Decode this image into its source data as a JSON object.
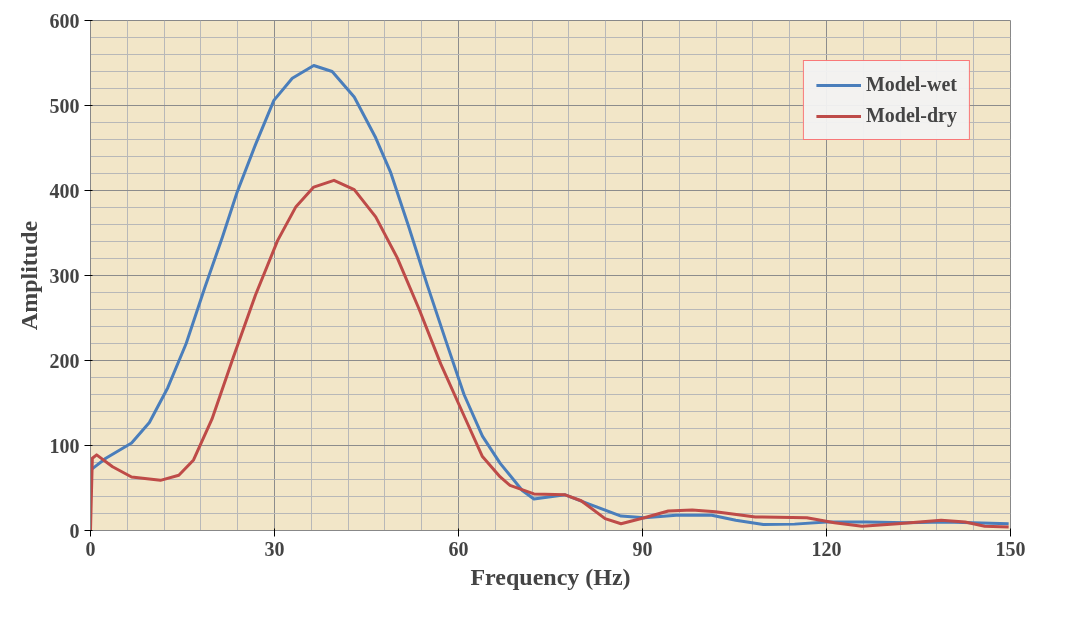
{
  "chart_data": {
    "type": "line",
    "xlabel": "Frequency (Hz)",
    "ylabel": "Amplitude",
    "xlim": [
      0,
      150
    ],
    "ylim": [
      0,
      600
    ],
    "xticks": [
      0,
      30,
      60,
      90,
      120,
      150
    ],
    "yticks": [
      0,
      100,
      200,
      300,
      400,
      500,
      600
    ],
    "grid": true,
    "legend": "top right",
    "line_style": "solid",
    "marker": "none",
    "series": [
      {
        "name": "Model-wet",
        "color": "#4a7ebb",
        "x": [
          0,
          2.5,
          6.7,
          9.6,
          12.6,
          15.6,
          18.6,
          21.5,
          23.9,
          26.9,
          29.9,
          32.9,
          36.4,
          39.4,
          43,
          46.5,
          48.9,
          51.9,
          54.9,
          57.9,
          60.9,
          63.9,
          66.8,
          70.4,
          72.3,
          77.4,
          81.3,
          86.5,
          90.3,
          95.5,
          101.3,
          105.2,
          109.7,
          114.8,
          120,
          126.5,
          133,
          139.4,
          149.7
        ],
        "values": [
          71,
          85,
          103,
          127,
          168,
          220,
          285,
          345,
          398,
          454,
          506,
          532,
          547,
          540,
          510,
          462,
          422,
          357,
          289,
          224,
          160,
          111,
          79,
          47,
          37,
          42,
          31,
          17,
          15,
          18,
          18,
          12,
          7,
          7.5,
          10,
          10,
          9,
          10,
          8
        ]
      },
      {
        "name": "Model-dry",
        "color": "#be4b48",
        "x": [
          0,
          0.3,
          1,
          3.6,
          6.7,
          11.4,
          14.4,
          16.8,
          19.8,
          23.3,
          26.9,
          30.5,
          33.5,
          36.4,
          39.7,
          43,
          46.5,
          50,
          53.6,
          57.1,
          60.9,
          63.9,
          66.8,
          68.4,
          72.3,
          77.4,
          80,
          83.9,
          86.5,
          90.3,
          94.2,
          98.1,
          101.9,
          108.4,
          116.8,
          121.3,
          125.8,
          131.6,
          138.7,
          142.6,
          145.8,
          149.7
        ],
        "values": [
          0,
          85,
          89,
          75,
          63,
          59,
          65,
          83,
          131,
          204,
          277,
          341,
          381,
          404,
          412,
          401,
          369,
          321,
          260,
          196,
          135,
          87,
          63,
          53,
          43,
          42,
          35,
          14,
          8,
          15,
          23,
          24,
          22,
          16,
          15,
          9,
          5,
          8,
          12,
          10,
          5,
          4
        ]
      }
    ]
  }
}
